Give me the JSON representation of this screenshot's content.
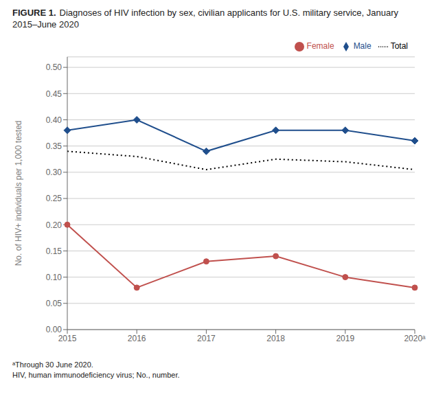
{
  "chart_data": {
    "type": "line",
    "title": "FIGURE 1.",
    "subtitle": "Diagnoses of HIV infection by sex, civilian applicants for U.S. military service, January 2015–June 2020",
    "categories": [
      "2015",
      "2016",
      "2017",
      "2018",
      "2019",
      "2020ᵃ"
    ],
    "series": [
      {
        "name": "Male",
        "color": "#1f4e8c",
        "marker": "diamond",
        "line_style": "solid",
        "values": [
          0.38,
          0.4,
          0.34,
          0.38,
          0.38,
          0.36
        ]
      },
      {
        "name": "Female",
        "color": "#c0504d",
        "marker": "circle",
        "line_style": "solid",
        "values": [
          0.2,
          0.08,
          0.13,
          0.14,
          0.1,
          0.08
        ]
      },
      {
        "name": "Total",
        "color": "#000000",
        "marker": "none",
        "line_style": "dotted",
        "values": [
          0.34,
          0.33,
          0.305,
          0.325,
          0.32,
          0.305
        ]
      }
    ],
    "y_label": "No. of HIV+ individuals per 1,000 tested",
    "ylim": [
      0.0,
      0.52
    ],
    "yticks": [
      {
        "value": 0,
        "label": "0.00"
      },
      {
        "value": 0.05,
        "label": "0.05"
      },
      {
        "value": 0.1,
        "label": "0.10"
      },
      {
        "value": 0.15,
        "label": "0.15"
      },
      {
        "value": 0.2,
        "label": "0.20"
      },
      {
        "value": 0.25,
        "label": "0.25"
      },
      {
        "value": 0.3,
        "label": "0.30"
      },
      {
        "value": 0.35,
        "label": "0.35"
      },
      {
        "value": 0.4,
        "label": "0.40"
      },
      {
        "value": 0.45,
        "label": "0.45"
      },
      {
        "value": 0.5,
        "label": "0.50"
      }
    ],
    "grid": true,
    "legend": "upper right",
    "annotations": [
      "ᵃThrough 30 June 2020.",
      "HIV, human immunodeficiency virus; No., number."
    ]
  }
}
